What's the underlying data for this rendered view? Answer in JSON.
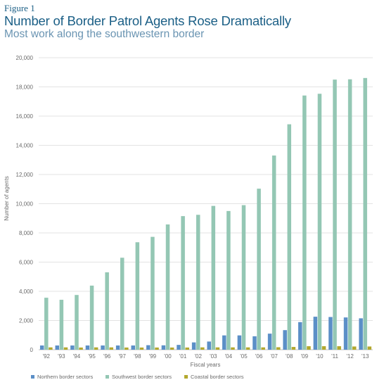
{
  "figure_label": "Figure 1",
  "chart_data": {
    "type": "bar",
    "title": "Number of Border Patrol Agents Rose Dramatically",
    "subtitle": "Most work along the southwestern border",
    "xlabel": "Fiscal years",
    "ylabel": "Number of agents",
    "ylim": [
      0,
      20000
    ],
    "yticks": [
      0,
      2000,
      4000,
      6000,
      8000,
      10000,
      12000,
      14000,
      16000,
      18000,
      20000
    ],
    "ytick_labels": [
      "0",
      "2,000",
      "4,000",
      "6,000",
      "8,000",
      "10,000",
      "12,000",
      "14,000",
      "16,000",
      "18,000",
      "20,000"
    ],
    "grid": true,
    "legend_position": "bottom",
    "categories": [
      "'92",
      "'93",
      "'94",
      "'95",
      "'96",
      "'97",
      "'98",
      "'99",
      "'00",
      "'01",
      "'02",
      "'03",
      "'04",
      "'05",
      "'06",
      "'07",
      "'08",
      "'09",
      "'10",
      "'11",
      "'12",
      "'13"
    ],
    "series": [
      {
        "name": "Northern border sectors",
        "color": "#5b8fc7",
        "values": [
          290,
          290,
          290,
          290,
          290,
          290,
          290,
          310,
          300,
          330,
          500,
          560,
          980,
          980,
          920,
          1100,
          1340,
          1890,
          2260,
          2240,
          2210,
          2150
        ]
      },
      {
        "name": "Southwest border sectors",
        "color": "#94c7b4",
        "values": [
          3560,
          3420,
          3750,
          4390,
          5300,
          6300,
          7360,
          7730,
          8580,
          9150,
          9240,
          9850,
          9500,
          9900,
          11030,
          13300,
          15440,
          17410,
          17530,
          18500,
          18520,
          18610
        ]
      },
      {
        "name": "Coastal border sectors",
        "color": "#b3a82e",
        "values": [
          160,
          160,
          150,
          160,
          160,
          150,
          150,
          150,
          150,
          150,
          160,
          160,
          160,
          160,
          160,
          170,
          190,
          240,
          240,
          240,
          220,
          220
        ]
      }
    ]
  }
}
